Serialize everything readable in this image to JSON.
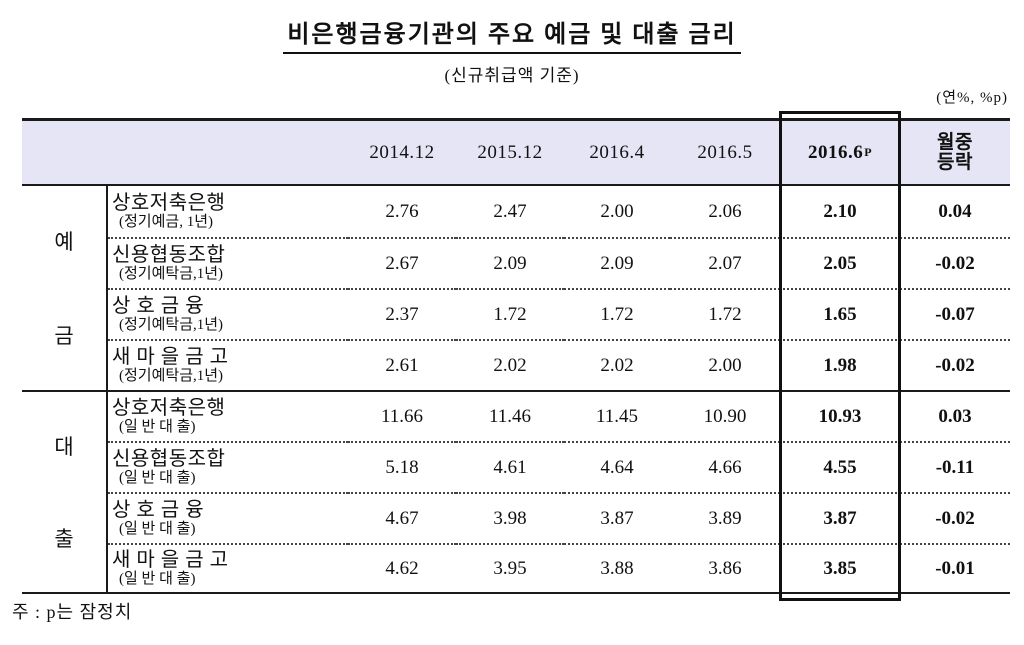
{
  "title": "비은행금융기관의 주요 예금 및 대출 금리",
  "subtitle": "(신규취급액 기준)",
  "unit_note": "(연%, %p)",
  "footnote": "주 : p는 잠정치",
  "colors": {
    "header_bg": "#e6e5f6",
    "border": "#1a1a1a"
  },
  "table": {
    "column_headers": [
      "2014.12",
      "2015.12",
      "2016.4",
      "2016.5"
    ],
    "highlight_header": {
      "label": "2016.6",
      "superscript": "P"
    },
    "change_header": {
      "line1": "월중",
      "line2": "등락"
    },
    "sections": [
      {
        "group_chars": [
          "예",
          "금"
        ],
        "rows": [
          {
            "name": "상호저축은행",
            "detail": "(정기예금, 1년)",
            "values": [
              "2.76",
              "2.47",
              "2.00",
              "2.06"
            ],
            "current": "2.10",
            "change": "0.04"
          },
          {
            "name": "신용협동조합",
            "detail": "(정기예탁금,1년)",
            "values": [
              "2.67",
              "2.09",
              "2.09",
              "2.07"
            ],
            "current": "2.05",
            "change": "-0.02"
          },
          {
            "name": "상 호 금 융",
            "detail": "(정기예탁금,1년)",
            "values": [
              "2.37",
              "1.72",
              "1.72",
              "1.72"
            ],
            "current": "1.65",
            "change": "-0.07"
          },
          {
            "name": "새 마 을 금 고",
            "detail": "(정기예탁금,1년)",
            "values": [
              "2.61",
              "2.02",
              "2.02",
              "2.00"
            ],
            "current": "1.98",
            "change": "-0.02"
          }
        ]
      },
      {
        "group_chars": [
          "대",
          "출"
        ],
        "rows": [
          {
            "name": "상호저축은행",
            "detail": "(일 반 대 출)",
            "values": [
              "11.66",
              "11.46",
              "11.45",
              "10.90"
            ],
            "current": "10.93",
            "change": "0.03"
          },
          {
            "name": "신용협동조합",
            "detail": "(일 반 대 출)",
            "values": [
              "5.18",
              "4.61",
              "4.64",
              "4.66"
            ],
            "current": "4.55",
            "change": "-0.11"
          },
          {
            "name": "상 호 금 융",
            "detail": "(일 반 대 출)",
            "values": [
              "4.67",
              "3.98",
              "3.87",
              "3.89"
            ],
            "current": "3.87",
            "change": "-0.02"
          },
          {
            "name": "새 마 을 금 고",
            "detail": "(일 반 대 출)",
            "values": [
              "4.62",
              "3.95",
              "3.88",
              "3.86"
            ],
            "current": "3.85",
            "change": "-0.01"
          }
        ]
      }
    ]
  }
}
